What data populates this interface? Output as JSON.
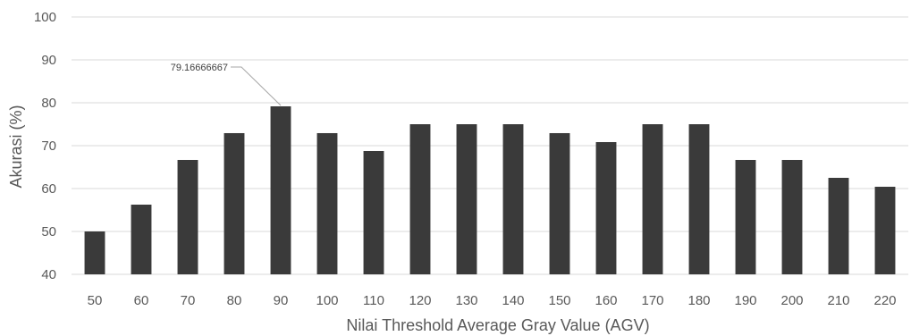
{
  "chart_data": {
    "type": "bar",
    "xlabel": "Nilai Threshold Average Gray Value (AGV)",
    "ylabel": "Akurasi (%)",
    "ylim": [
      40,
      100
    ],
    "yticks": [
      40,
      50,
      60,
      70,
      80,
      90,
      100
    ],
    "grid": true,
    "legend": "none",
    "categories": [
      "50",
      "60",
      "70",
      "80",
      "90",
      "100",
      "110",
      "120",
      "130",
      "140",
      "150",
      "160",
      "170",
      "180",
      "190",
      "200",
      "210",
      "220"
    ],
    "series": [
      {
        "values": [
          50,
          56.25,
          66.67,
          72.92,
          79.16666667,
          72.92,
          68.75,
          75,
          75,
          75,
          72.92,
          70.83,
          75,
          75,
          66.67,
          66.67,
          62.5,
          60.42
        ]
      }
    ],
    "annotations": [
      {
        "category": "90",
        "text": "79.16666667"
      }
    ],
    "colors": {
      "bar": "#3a3a3a",
      "grid": "#d9d9d9",
      "text": "#595959",
      "leader": "#a6a6a6"
    }
  }
}
